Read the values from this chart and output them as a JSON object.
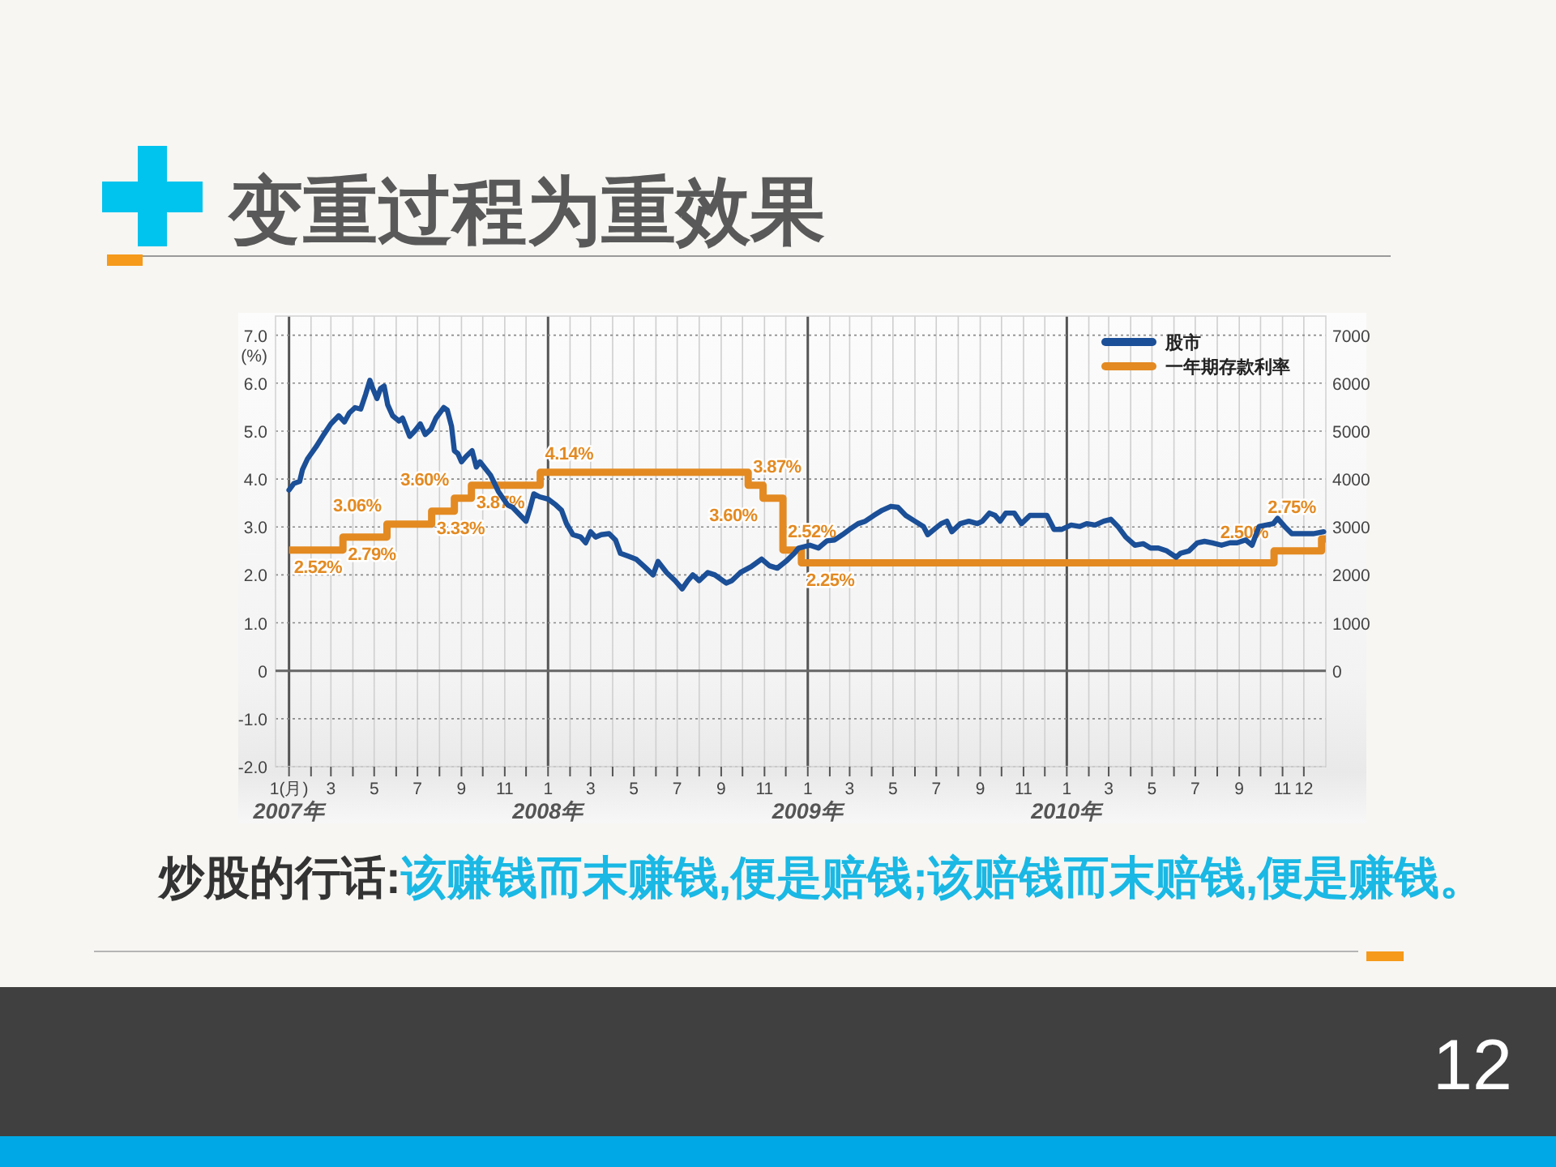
{
  "chart_data": {
    "type": "line",
    "title": "变重过程为重效果",
    "ylabel": "(%)",
    "xlim": [
      "2006-12-13",
      "2011-01-01"
    ],
    "xticks": [
      {
        "value": "2007-01",
        "label": "1(月)\n2007年"
      },
      {
        "value": "2007-02",
        "label": null
      },
      {
        "value": "2007-03",
        "label": "3"
      },
      {
        "value": "2007-04",
        "label": null
      },
      {
        "value": "2007-05",
        "label": "5"
      },
      {
        "value": "2007-06",
        "label": null
      },
      {
        "value": "2007-07",
        "label": "7"
      },
      {
        "value": "2007-08",
        "label": null
      },
      {
        "value": "2007-09",
        "label": "9"
      },
      {
        "value": "2007-10",
        "label": null
      },
      {
        "value": "2007-11",
        "label": "11"
      },
      {
        "value": "2007-12",
        "label": null
      },
      {
        "value": "2008-01",
        "label": "1\n2008年"
      },
      {
        "value": "2008-02",
        "label": null
      },
      {
        "value": "2008-03",
        "label": "3"
      },
      {
        "value": "2008-04",
        "label": null
      },
      {
        "value": "2008-05",
        "label": "5"
      },
      {
        "value": "2008-06",
        "label": null
      },
      {
        "value": "2008-07",
        "label": "7"
      },
      {
        "value": "2008-08",
        "label": null
      },
      {
        "value": "2008-09",
        "label": "9"
      },
      {
        "value": "2008-10",
        "label": null
      },
      {
        "value": "2008-11",
        "label": "11"
      },
      {
        "value": "2008-12",
        "label": null
      },
      {
        "value": "2009-01",
        "label": "1\n2009年"
      },
      {
        "value": "2009-02",
        "label": null
      },
      {
        "value": "2009-03",
        "label": "3"
      },
      {
        "value": "2009-04",
        "label": null
      },
      {
        "value": "2009-05",
        "label": "5"
      },
      {
        "value": "2009-06",
        "label": null
      },
      {
        "value": "2009-07",
        "label": "7"
      },
      {
        "value": "2009-08",
        "label": null
      },
      {
        "value": "2009-09",
        "label": "9"
      },
      {
        "value": "2009-10",
        "label": null
      },
      {
        "value": "2009-11",
        "label": "11"
      },
      {
        "value": "2009-12",
        "label": null
      },
      {
        "value": "2010-01",
        "label": "1\n2010年"
      },
      {
        "value": "2010-02",
        "label": null
      },
      {
        "value": "2010-03",
        "label": "3"
      },
      {
        "value": "2010-04",
        "label": null
      },
      {
        "value": "2010-05",
        "label": "5"
      },
      {
        "value": "2010-06",
        "label": null
      },
      {
        "value": "2010-07",
        "label": "7"
      },
      {
        "value": "2010-08",
        "label": null
      },
      {
        "value": "2010-09",
        "label": "9"
      },
      {
        "value": "2010-10",
        "label": null
      },
      {
        "value": "2010-11",
        "label": "11"
      },
      {
        "value": "2010-12",
        "label": "12"
      }
    ],
    "ylim": [
      -2.0,
      7.4
    ],
    "yticks": [
      {
        "value": -2,
        "label": "-2.0"
      },
      {
        "value": -1,
        "label": "-1.0"
      },
      0,
      {
        "value": 1,
        "label": "1.0"
      },
      {
        "value": 2,
        "label": "2.0"
      },
      {
        "value": 3,
        "label": "3.0"
      },
      {
        "value": 4,
        "label": "4.0"
      },
      {
        "value": 5,
        "label": "5.0"
      },
      {
        "value": 6,
        "label": "6.0"
      },
      {
        "value": 7,
        "label": "7.0"
      }
    ],
    "y2lim": [
      -2000,
      7400
    ],
    "y2ticks": [
      0,
      1000,
      2000,
      3000,
      4000,
      5000,
      6000,
      7000
    ],
    "grid": true,
    "legend": "top right",
    "ref_lines": [
      {
        "axis": "y",
        "value": 0,
        "color": "#666666"
      }
    ],
    "series": [
      {
        "name": "股市",
        "color": "#1b4f97",
        "axis": "y2",
        "x": [
          "2007-01-01",
          "2007-01-08",
          "2007-01-16",
          "2007-01-20",
          "2007-01-27",
          "2007-02-08",
          "2007-02-19",
          "2007-03-01",
          "2007-03-12",
          "2007-03-20",
          "2007-03-27",
          "2007-04-04",
          "2007-04-12",
          "2007-04-19",
          "2007-04-25",
          "2007-04-29",
          "2007-05-05",
          "2007-05-10",
          "2007-05-15",
          "2007-05-20",
          "2007-05-27",
          "2007-06-05",
          "2007-06-10",
          "2007-06-20",
          "2007-06-27",
          "2007-07-05",
          "2007-07-12",
          "2007-07-20",
          "2007-07-27",
          "2007-08-07",
          "2007-08-12",
          "2007-08-18",
          "2007-08-22",
          "2007-08-27",
          "2007-09-01",
          "2007-09-08",
          "2007-09-16",
          "2007-09-22",
          "2007-09-27",
          "2007-10-12",
          "2007-10-23",
          "2007-11-05",
          "2007-11-12",
          "2007-11-23",
          "2007-12-01",
          "2007-12-07",
          "2007-12-12",
          "2007-12-20",
          "2008-01-01",
          "2008-01-12",
          "2008-01-20",
          "2008-01-27",
          "2008-02-05",
          "2008-02-16",
          "2008-02-23",
          "2008-03-01",
          "2008-03-08",
          "2008-03-16",
          "2008-03-27",
          "2008-04-05",
          "2008-04-12",
          "2008-04-23",
          "2008-05-04",
          "2008-05-16",
          "2008-05-28",
          "2008-06-04",
          "2008-06-16",
          "2008-06-28",
          "2008-07-08",
          "2008-07-16",
          "2008-07-23",
          "2008-08-01",
          "2008-08-13",
          "2008-08-23",
          "2008-09-08",
          "2008-09-16",
          "2008-09-28",
          "2008-10-13",
          "2008-10-28",
          "2008-11-08",
          "2008-11-19",
          "2008-12-01",
          "2008-12-13",
          "2008-12-19",
          "2009-01-04",
          "2009-01-16",
          "2009-01-28",
          "2009-02-08",
          "2009-02-19",
          "2009-03-01",
          "2009-03-13",
          "2009-03-23",
          "2009-04-04",
          "2009-04-16",
          "2009-04-28",
          "2009-05-08",
          "2009-05-19",
          "2009-06-01",
          "2009-06-13",
          "2009-06-19",
          "2009-06-28",
          "2009-07-08",
          "2009-07-16",
          "2009-07-23",
          "2009-08-04",
          "2009-08-16",
          "2009-08-28",
          "2009-09-04",
          "2009-09-14",
          "2009-09-22",
          "2009-09-29",
          "2009-10-07",
          "2009-10-19",
          "2009-10-29",
          "2009-11-10",
          "2009-11-22",
          "2009-12-04",
          "2009-12-14",
          "2009-12-25",
          "2010-01-07",
          "2010-01-19",
          "2010-01-29",
          "2010-02-10",
          "2010-02-22",
          "2010-03-04",
          "2010-03-14",
          "2010-03-25",
          "2010-04-07",
          "2010-04-19",
          "2010-04-29",
          "2010-05-10",
          "2010-05-22",
          "2010-06-04",
          "2010-06-10",
          "2010-06-22",
          "2010-07-04",
          "2010-07-14",
          "2010-07-25",
          "2010-08-07",
          "2010-08-19",
          "2010-08-29",
          "2010-09-10",
          "2010-09-19",
          "2010-09-29",
          "2010-10-19",
          "2010-10-25",
          "2010-11-04",
          "2010-11-14",
          "2010-11-29",
          "2010-12-14",
          "2010-12-29"
        ],
        "values": [
          3770,
          3910,
          3950,
          4200,
          4420,
          4670,
          4930,
          5150,
          5320,
          5190,
          5380,
          5490,
          5460,
          5770,
          6060,
          5890,
          5680,
          5890,
          5940,
          5550,
          5320,
          5210,
          5270,
          4890,
          5000,
          5150,
          4930,
          5040,
          5270,
          5490,
          5440,
          5100,
          4590,
          4530,
          4360,
          4480,
          4590,
          4250,
          4360,
          4080,
          3740,
          3460,
          3410,
          3240,
          3120,
          3410,
          3690,
          3630,
          3580,
          3460,
          3350,
          3070,
          2840,
          2790,
          2670,
          2900,
          2790,
          2840,
          2860,
          2730,
          2450,
          2390,
          2330,
          2170,
          2000,
          2280,
          2050,
          1880,
          1710,
          1880,
          2000,
          1880,
          2050,
          2000,
          1830,
          1880,
          2050,
          2170,
          2330,
          2190,
          2140,
          2280,
          2450,
          2560,
          2620,
          2560,
          2710,
          2730,
          2840,
          2950,
          3070,
          3120,
          3240,
          3350,
          3430,
          3410,
          3240,
          3120,
          3010,
          2840,
          2950,
          3070,
          3120,
          2900,
          3070,
          3120,
          3070,
          3120,
          3290,
          3240,
          3120,
          3290,
          3290,
          3070,
          3240,
          3240,
          3240,
          2950,
          2950,
          3040,
          3010,
          3070,
          3040,
          3120,
          3160,
          3010,
          2790,
          2620,
          2650,
          2560,
          2560,
          2500,
          2370,
          2450,
          2500,
          2670,
          2700,
          2670,
          2620,
          2670,
          2670,
          2730,
          2620,
          3010,
          3070,
          3180,
          3010,
          2860,
          2860,
          2860,
          2900
        ]
      },
      {
        "name": "一年期存款利率",
        "type": "step",
        "color": "#e38a22",
        "x": [
          "2007-01-01",
          "2007-03-18",
          "2007-05-19",
          "2007-07-21",
          "2007-08-22",
          "2007-09-15",
          "2007-12-21",
          "2008-10-09",
          "2008-10-30",
          "2008-11-27",
          "2008-12-23",
          "2010-10-20",
          "2010-12-26",
          "2011-01-01"
        ],
        "values": [
          2.52,
          2.79,
          3.06,
          3.33,
          3.6,
          3.87,
          4.14,
          3.87,
          3.6,
          2.52,
          2.25,
          2.5,
          2.75,
          2.75
        ],
        "value_labels": [
          "2.52%",
          "2.79%",
          "3.06%",
          "3.33%",
          "3.60%",
          "3.87%",
          "4.14%",
          "3.87%",
          "3.60%",
          "2.52%",
          "2.25%",
          "2.50%",
          "2.75%",
          null
        ]
      }
    ],
    "annotations": [
      "炒股的行话:",
      "该赚钱而末赚钱,便是赔钱;该赔钱而末赔钱,便是赚钱。",
      "12"
    ]
  }
}
